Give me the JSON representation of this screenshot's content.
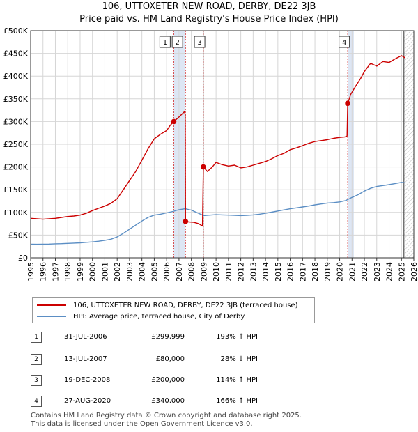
{
  "title": "106, UTTOXETER NEW ROAD, DERBY, DE22 3JB",
  "subtitle": "Price paid vs. HM Land Registry's House Price Index (HPI)",
  "colors": {
    "property": "#cc0000",
    "hpi": "#5b8ec4",
    "shade": "#dde6f4",
    "grid": "#d6d6d6"
  },
  "chart_data": {
    "type": "line",
    "ylim": [
      0,
      500000
    ],
    "xlim": [
      1995,
      2026
    ],
    "y_ticks": [
      "£0",
      "£50K",
      "£100K",
      "£150K",
      "£200K",
      "£250K",
      "£300K",
      "£350K",
      "£400K",
      "£450K",
      "£500K"
    ],
    "y_tick_values": [
      0,
      50000,
      100000,
      150000,
      200000,
      250000,
      300000,
      350000,
      400000,
      450000,
      500000
    ],
    "x_ticks": [
      "1995",
      "1996",
      "1997",
      "1998",
      "1999",
      "2000",
      "2001",
      "2002",
      "2003",
      "2004",
      "2005",
      "2006",
      "2007",
      "2008",
      "2009",
      "2010",
      "2011",
      "2012",
      "2013",
      "2014",
      "2015",
      "2016",
      "2017",
      "2018",
      "2019",
      "2020",
      "2021",
      "2022",
      "2023",
      "2024",
      "2025",
      "2026"
    ],
    "shaded_ranges": [
      [
        2006.58,
        2007.53
      ],
      [
        2020.65,
        2021.15
      ]
    ],
    "hatched_from": 2025.2,
    "series": [
      {
        "name": "106, UTTOXETER NEW ROAD, DERBY, DE22 3JB (terraced house)",
        "x": [
          1995.0,
          1995.5,
          1996.0,
          1996.5,
          1997.0,
          1997.5,
          1998.0,
          1998.5,
          1999.0,
          1999.5,
          2000.0,
          2000.5,
          2001.0,
          2001.5,
          2002.0,
          2002.5,
          2003.0,
          2003.5,
          2004.0,
          2004.5,
          2005.0,
          2005.5,
          2006.0,
          2006.3,
          2006.58,
          2007.0,
          2007.3,
          2007.45,
          2007.5,
          2007.53,
          2007.8,
          2008.2,
          2008.6,
          2008.9,
          2008.97,
          2009.3,
          2009.7,
          2010.0,
          2010.5,
          2011.0,
          2011.5,
          2012.0,
          2012.5,
          2013.0,
          2013.5,
          2014.0,
          2014.5,
          2015.0,
          2015.5,
          2016.0,
          2016.5,
          2017.0,
          2017.5,
          2018.0,
          2018.5,
          2019.0,
          2019.5,
          2020.0,
          2020.4,
          2020.6,
          2020.65,
          2020.9,
          2021.3,
          2021.7,
          2022.0,
          2022.5,
          2023.0,
          2023.5,
          2024.0,
          2024.5,
          2025.0,
          2025.3
        ],
        "values": [
          87000,
          86000,
          85000,
          86000,
          87000,
          89000,
          91000,
          92000,
          94000,
          98000,
          104000,
          109000,
          114000,
          120000,
          130000,
          150000,
          170000,
          190000,
          215000,
          240000,
          262000,
          272000,
          280000,
          292000,
          299999,
          310000,
          318000,
          322000,
          315000,
          80000,
          79000,
          78000,
          75000,
          70000,
          200000,
          190000,
          200000,
          210000,
          205000,
          202000,
          204000,
          198000,
          200000,
          204000,
          208000,
          212000,
          218000,
          225000,
          230000,
          238000,
          242000,
          247000,
          252000,
          256000,
          258000,
          260000,
          263000,
          265000,
          266000,
          268000,
          340000,
          360000,
          378000,
          395000,
          410000,
          428000,
          422000,
          432000,
          430000,
          438000,
          445000,
          440000
        ]
      },
      {
        "name": "HPI: Average price, terraced house, City of Derby",
        "x": [
          1995.0,
          1995.5,
          1996.0,
          1996.5,
          1997.0,
          1997.5,
          1998.0,
          1998.5,
          1999.0,
          1999.5,
          2000.0,
          2000.5,
          2001.0,
          2001.5,
          2002.0,
          2002.5,
          2003.0,
          2003.5,
          2004.0,
          2004.5,
          2005.0,
          2005.5,
          2006.0,
          2006.5,
          2007.0,
          2007.5,
          2008.0,
          2008.5,
          2009.0,
          2009.5,
          2010.0,
          2010.5,
          2011.0,
          2011.5,
          2012.0,
          2012.5,
          2013.0,
          2013.5,
          2014.0,
          2014.5,
          2015.0,
          2015.5,
          2016.0,
          2016.5,
          2017.0,
          2017.5,
          2018.0,
          2018.5,
          2019.0,
          2019.5,
          2020.0,
          2020.5,
          2021.0,
          2021.5,
          2022.0,
          2022.5,
          2023.0,
          2023.5,
          2024.0,
          2024.5,
          2025.0,
          2025.3
        ],
        "values": [
          30000,
          29800,
          30000,
          30200,
          30800,
          31200,
          31800,
          32300,
          33000,
          34000,
          35000,
          36500,
          38500,
          41000,
          46000,
          54000,
          63000,
          72000,
          81000,
          89000,
          94000,
          96000,
          99000,
          102000,
          106000,
          108000,
          105000,
          99000,
          93000,
          94000,
          95000,
          94500,
          94000,
          93500,
          93000,
          93500,
          94500,
          96000,
          98000,
          100500,
          103000,
          105500,
          108000,
          110000,
          112000,
          114000,
          116500,
          118500,
          120500,
          121500,
          123000,
          126000,
          133000,
          139000,
          147000,
          153000,
          157000,
          159000,
          161000,
          163500,
          166000,
          165000
        ]
      }
    ],
    "sale_markers": [
      {
        "label": "1",
        "x": 2006.58,
        "value": 299999
      },
      {
        "label": "2",
        "x": 2007.53,
        "value": 80000
      },
      {
        "label": "3",
        "x": 2008.97,
        "value": 200000
      },
      {
        "label": "4",
        "x": 2020.65,
        "value": 340000
      }
    ],
    "marker_label_x": [
      2005.9,
      2006.9,
      2008.7,
      2020.4
    ]
  },
  "legend": {
    "property_label": "106, UTTOXETER NEW ROAD, DERBY, DE22 3JB (terraced house)",
    "hpi_label": "HPI: Average price, terraced house, City of Derby"
  },
  "transactions": [
    {
      "num": "1",
      "date": "31-JUL-2006",
      "price": "£299,999",
      "hpi": "193% ↑ HPI"
    },
    {
      "num": "2",
      "date": "13-JUL-2007",
      "price": "£80,000",
      "hpi": "28% ↓ HPI"
    },
    {
      "num": "3",
      "date": "19-DEC-2008",
      "price": "£200,000",
      "hpi": "114% ↑ HPI"
    },
    {
      "num": "4",
      "date": "27-AUG-2020",
      "price": "£340,000",
      "hpi": "166% ↑ HPI"
    }
  ],
  "footer": {
    "line1": "Contains HM Land Registry data © Crown copyright and database right 2025.",
    "line2": "This data is licensed under the Open Government Licence v3.0."
  }
}
